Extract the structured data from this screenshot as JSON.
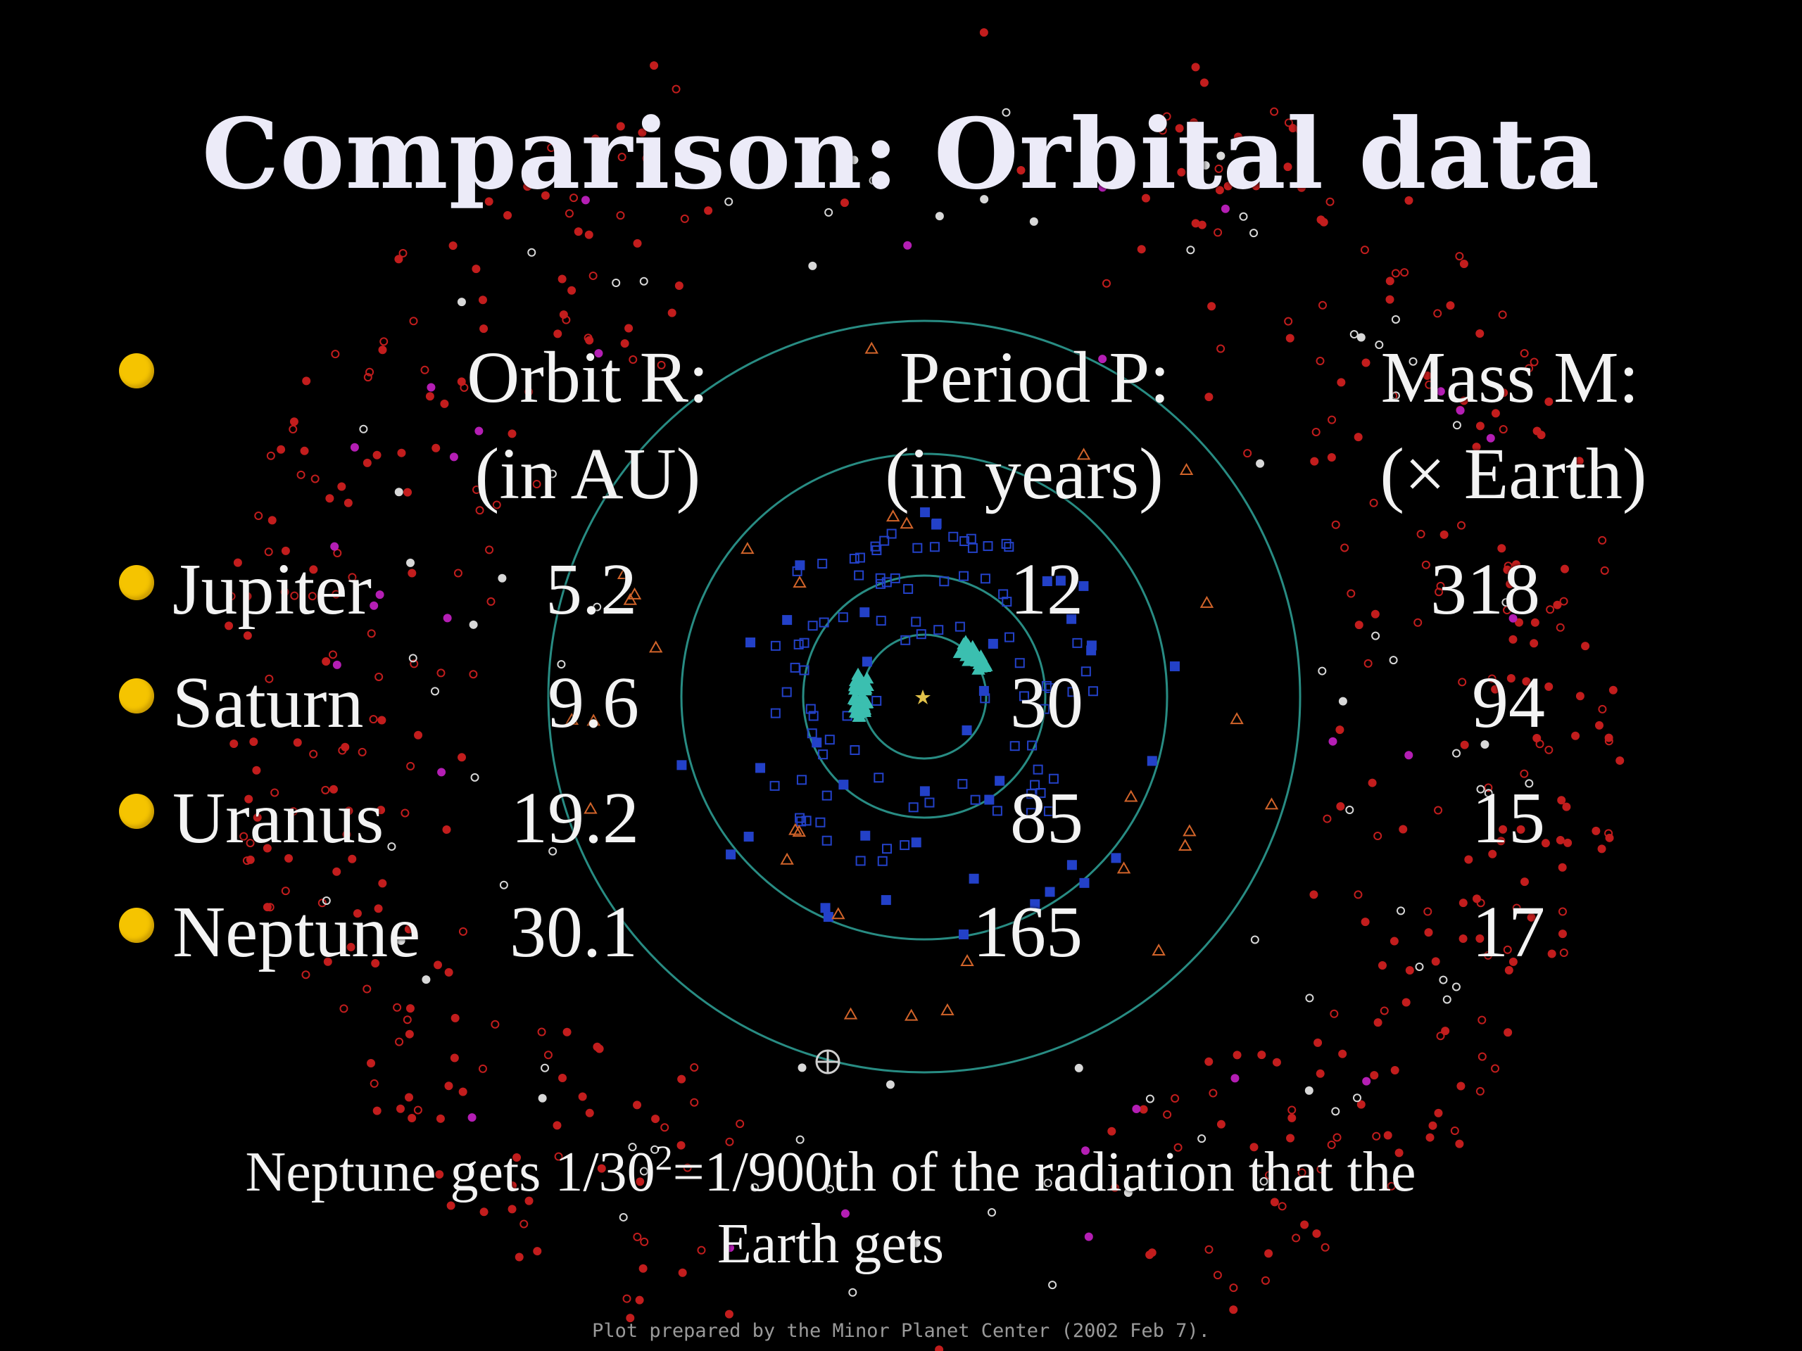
{
  "slide": {
    "title": "Comparison: Orbital data",
    "header_bullet_icon": "bullet-dot-icon",
    "columns": [
      {
        "line1": "Orbit R:",
        "line2": "(in AU)"
      },
      {
        "line1": "Period P:",
        "line2": "(in years)"
      },
      {
        "line1": "Mass M:",
        "line2": "(× Earth)"
      }
    ],
    "rows": [
      {
        "name": "Jupiter",
        "orbit": "5.2",
        "period": "12",
        "mass": "318"
      },
      {
        "name": "Saturn",
        "orbit": "9.6",
        "period": "30",
        "mass": "94"
      },
      {
        "name": "Uranus",
        "orbit": "19.2",
        "period": "85",
        "mass": "15"
      },
      {
        "name": "Neptune",
        "orbit": "30.1",
        "period": "165",
        "mass": "17"
      }
    ],
    "note": {
      "before": "Neptune gets 1/30",
      "superscript": "2",
      "after": "=1/900th of the radiation that the",
      "line2": "Earth gets"
    },
    "credit": "Plot prepared by the Minor Planet Center (2002 Feb 7)."
  },
  "colors": {
    "background": "#000000",
    "text": "#f3f3f3",
    "bullet": "#f5c400",
    "orbit_ring": "#2fa59a",
    "kbo_red": "#c21d1d",
    "asteroid_blue": "#2341c8",
    "trojan_cyan": "#3bbfb0",
    "centaur_orange": "#d2642a",
    "scattered_magenta": "#b41eb4",
    "comet_white": "#d8d8d8"
  }
}
